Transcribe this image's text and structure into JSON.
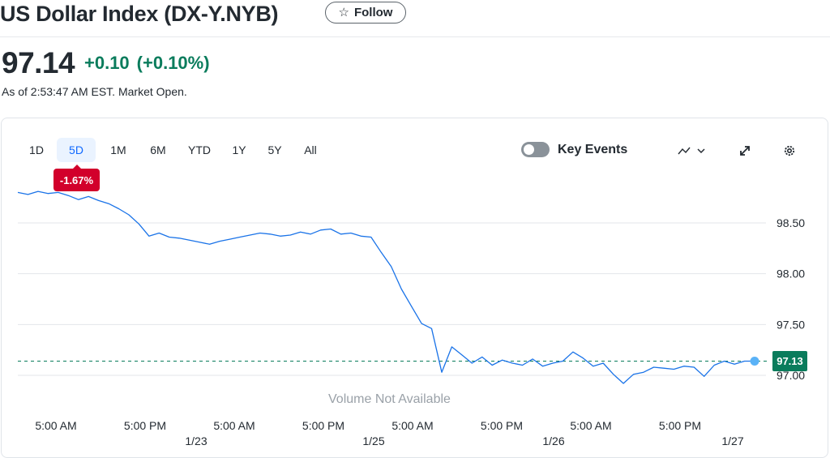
{
  "header": {
    "title": "US Dollar Index (DX-Y.NYB)",
    "follow_label": "Follow",
    "follow_icon": "star-outline-icon"
  },
  "quote": {
    "price": "97.14",
    "change": "+0.10",
    "change_percent": "(+0.10%)",
    "as_of": "As of 2:53:47 AM EST. Market Open.",
    "positive_color": "#0a7c5c"
  },
  "chart": {
    "ranges": [
      "1D",
      "5D",
      "1M",
      "6M",
      "YTD",
      "1Y",
      "5Y",
      "All"
    ],
    "active_range": "5D",
    "performance_badge": "-1.67%",
    "key_events_label": "Key Events",
    "key_events_enabled": false,
    "volume_note": "Volume Not Available",
    "last_price_label": "97.13",
    "line_color": "#1a73e8",
    "negative_color": "#d2002b"
  },
  "chart_data": {
    "type": "line",
    "title": "",
    "ylabel": "",
    "xlabel": "",
    "ylim": [
      96.9,
      98.95
    ],
    "yticks": [
      "98.50",
      "98.00",
      "97.50",
      "97.00"
    ],
    "ytick_values": [
      98.5,
      98.0,
      97.5,
      97.0
    ],
    "xtick_time_labels": [
      "5:00 AM",
      "5:00 PM",
      "5:00 AM",
      "5:00 PM",
      "5:00 AM",
      "5:00 PM",
      "5:00 AM",
      "5:00 PM"
    ],
    "xtick_date_labels": [
      "1/23",
      "1/25",
      "1/26",
      "1/27"
    ],
    "reference_line": 97.14,
    "series": [
      {
        "values": [
          98.8,
          98.78,
          98.81,
          98.79,
          98.8,
          98.77,
          98.73,
          98.76,
          98.72,
          98.69,
          98.64,
          98.58,
          98.49,
          98.37,
          98.4,
          98.36,
          98.35,
          98.33,
          98.31,
          98.29,
          98.32,
          98.34,
          98.36,
          98.38,
          98.4,
          98.39,
          98.37,
          98.38,
          98.41,
          98.39,
          98.43,
          98.44,
          98.39,
          98.4,
          98.37,
          98.36,
          98.21,
          98.07,
          97.85,
          97.68,
          97.51,
          97.46,
          97.03,
          97.28,
          97.2,
          97.12,
          97.18,
          97.1,
          97.15,
          97.12,
          97.1,
          97.16,
          97.09,
          97.12,
          97.14,
          97.23,
          97.17,
          97.09,
          97.12,
          97.01,
          96.92,
          97.01,
          97.03,
          97.08,
          97.07,
          97.06,
          97.09,
          97.08,
          96.99,
          97.1,
          97.14,
          97.11,
          97.14,
          97.14
        ]
      }
    ]
  }
}
